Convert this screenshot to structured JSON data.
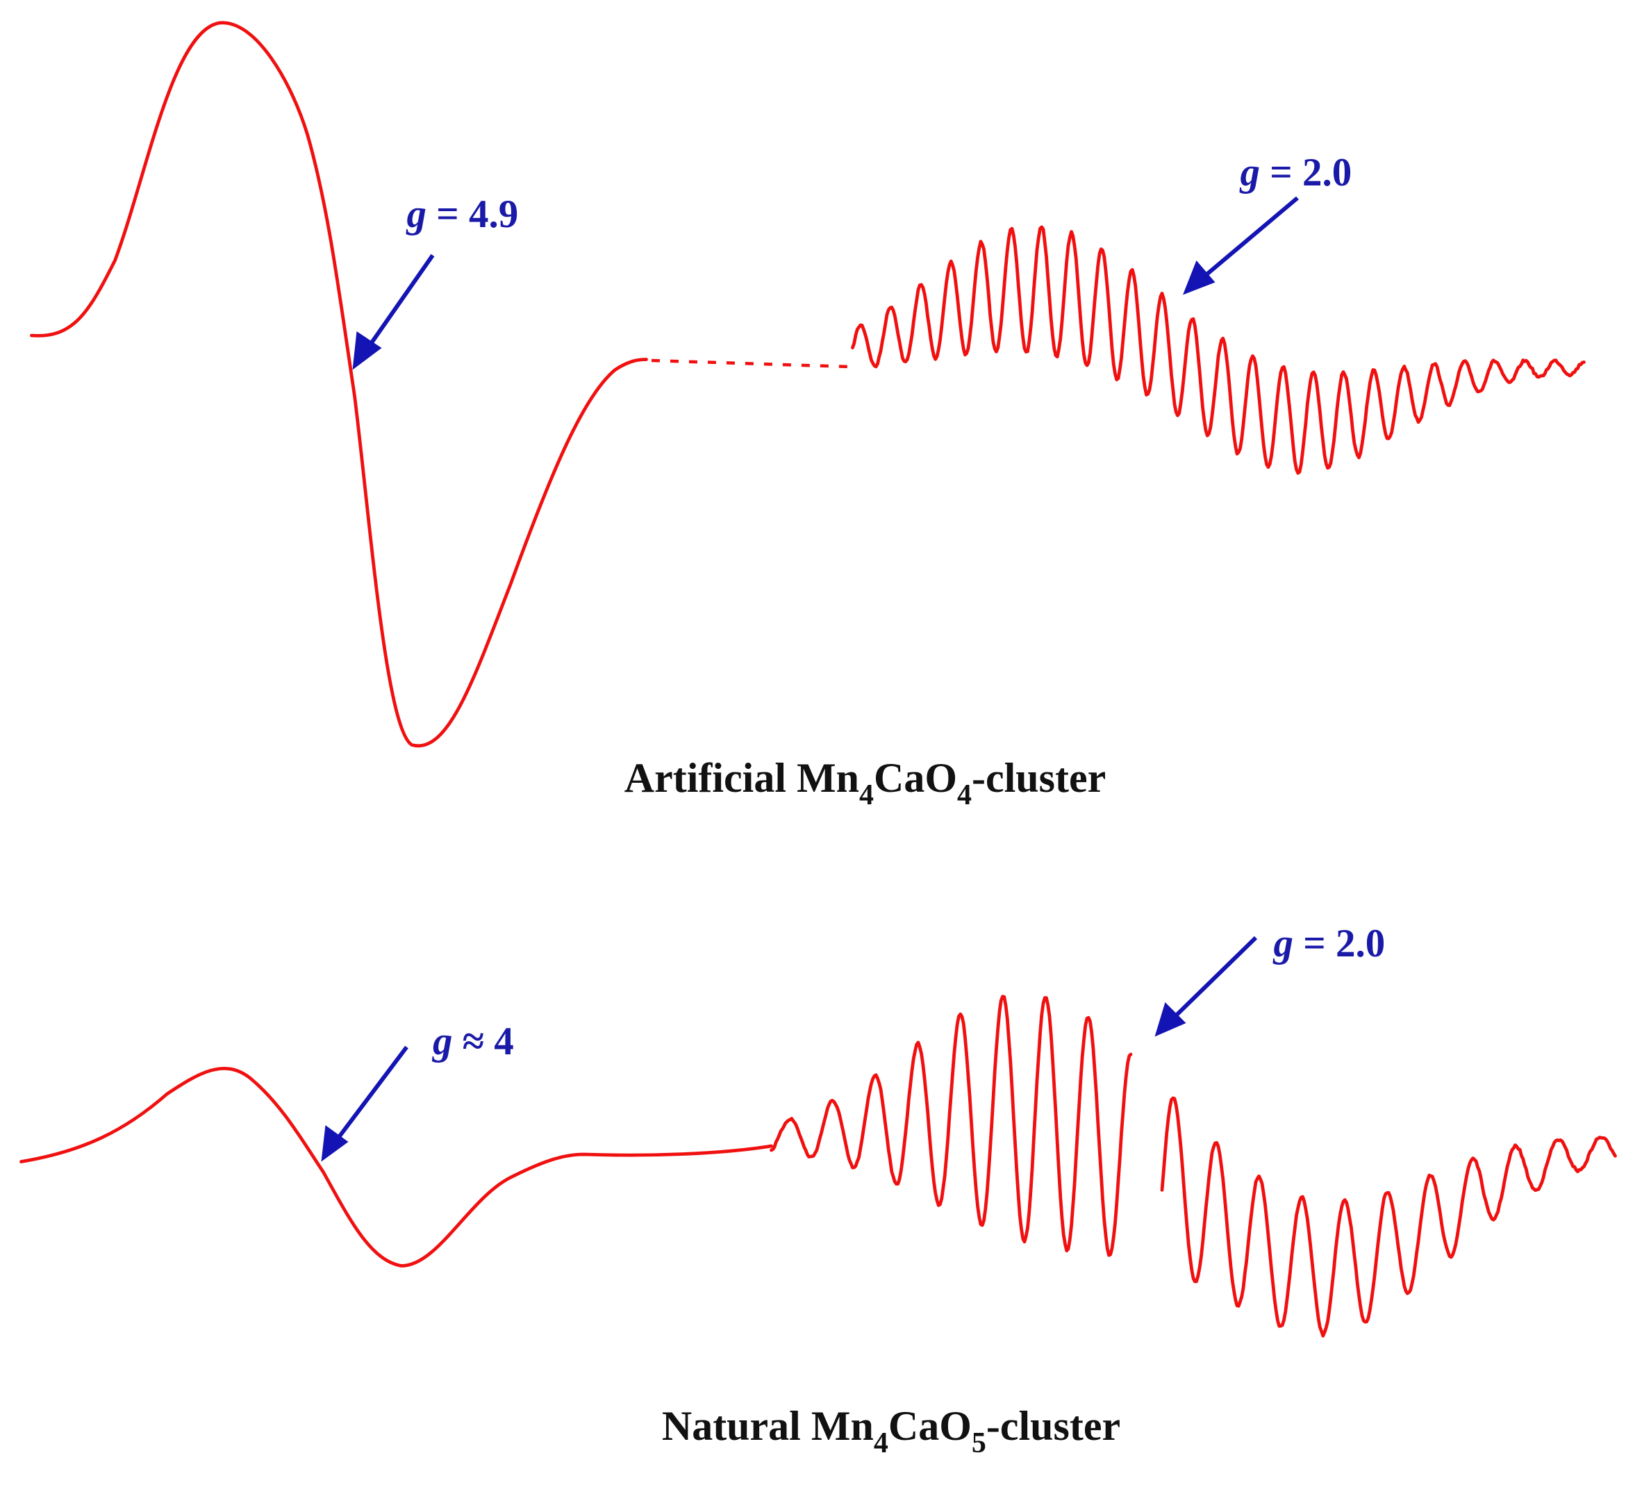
{
  "annotations": [
    {
      "symbol": "g",
      "text": "= 4.9"
    },
    {
      "symbol": "g",
      "text": "= 2.0"
    },
    {
      "symbol": "g",
      "text": "≈ 4"
    },
    {
      "symbol": "g",
      "text": "= 2.0"
    }
  ],
  "captions": [
    {
      "parts": [
        "Artificial Mn",
        "4",
        "CaO",
        "4",
        "-cluster"
      ]
    },
    {
      "parts": [
        "Natural Mn",
        "4",
        "CaO",
        "5",
        "-cluster"
      ]
    }
  ]
}
